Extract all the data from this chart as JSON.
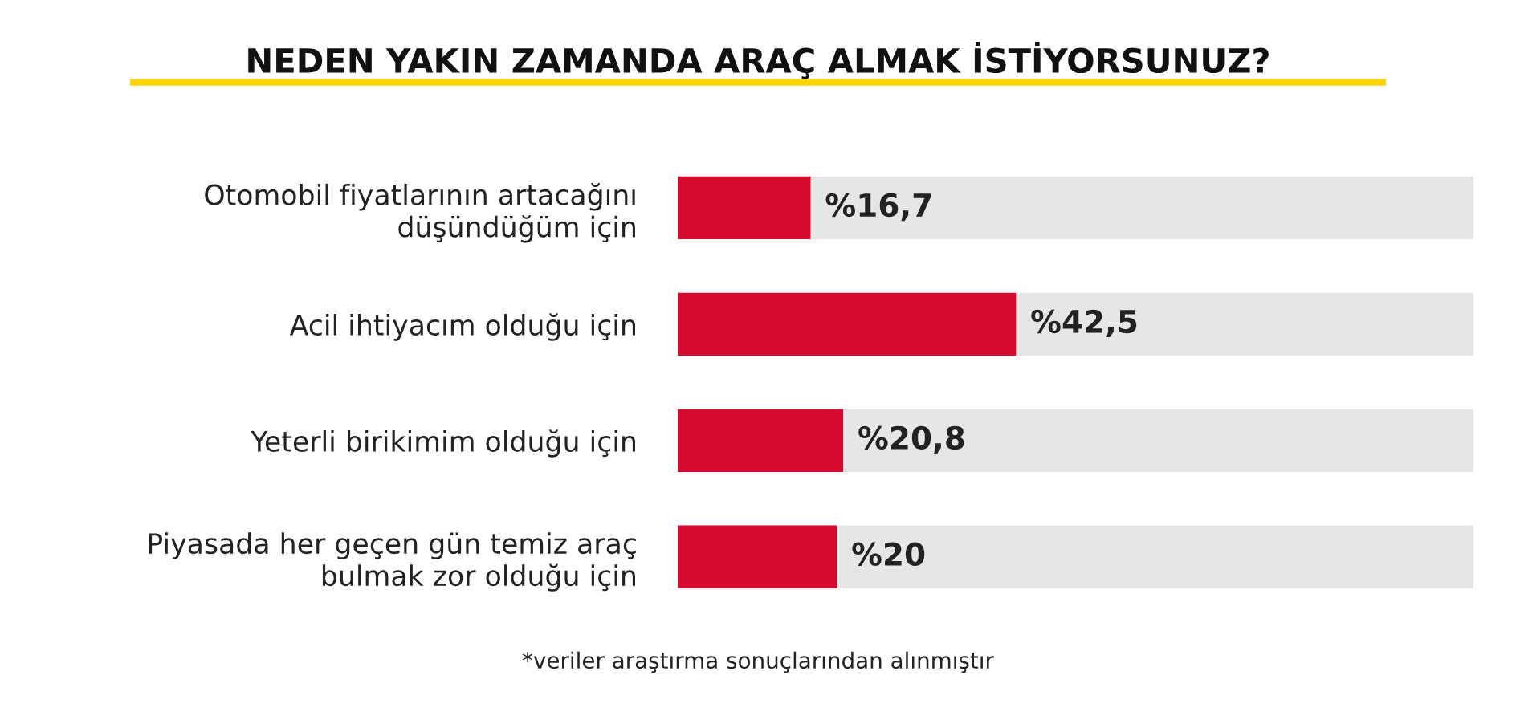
{
  "chart_data": {
    "type": "bar",
    "orientation": "horizontal",
    "title": "NEDEN YAKIN ZAMANDA ARAÇ ALMAK İSTİYORSUNUZ?",
    "categories": [
      "Otomobil fiyatlarının artacağını\ndüşündüğüm için",
      "Acil ihtiyacım olduğu için",
      "Yeterli birikimim olduğu için",
      "Piyasada her geçen gün temiz araç\nbulmak zor olduğu için"
    ],
    "values": [
      16.7,
      42.5,
      20.8,
      20
    ],
    "color": "#d50a30",
    "value_labels": [
      "%16,7",
      "%42,5",
      "%20,8",
      "%20"
    ],
    "xlim": [
      0,
      100
    ],
    "tick_labels": "y",
    "annotations": [
      "*veriler araştırma sonuçlarından alınmıştır"
    ]
  }
}
